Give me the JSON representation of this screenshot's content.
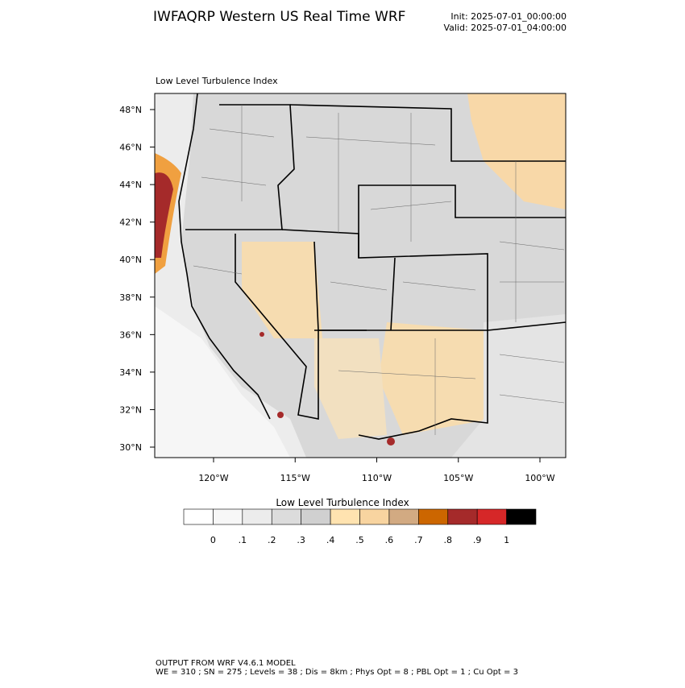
{
  "header": {
    "title": "IWFAQRP Western US Real Time WRF",
    "init": "Init: 2025-07-01_00:00:00",
    "valid": "Valid: 2025-07-01_04:00:00"
  },
  "map": {
    "subtitle": "Low Level Turbulence Index",
    "lat_labels": [
      "48°N",
      "46°N",
      "44°N",
      "42°N",
      "40°N",
      "38°N",
      "36°N",
      "34°N",
      "32°N",
      "30°N"
    ],
    "lon_labels": [
      "120°W",
      "115°W",
      "110°W",
      "105°W",
      "100°W"
    ]
  },
  "colorbar": {
    "title": "Low Level Turbulence Index",
    "colors": [
      "#ffffff",
      "#f7f7f7",
      "#ececec",
      "#dcdcdc",
      "#d0d0d0",
      "#ffe3b0",
      "#f8d4a0",
      "#d2aa82",
      "#cc6600",
      "#a52a2a",
      "#d62728",
      "#000000"
    ],
    "labels": [
      "0",
      ".1",
      ".2",
      ".3",
      ".4",
      ".5",
      ".6",
      ".7",
      ".8",
      ".9",
      "1"
    ]
  },
  "footer": {
    "line1": "OUTPUT FROM WRF V4.6.1 MODEL",
    "line2": "WE = 310 ; SN = 275 ; Levels = 38 ; Dis = 8km ; Phys Opt = 8 ; PBL Opt = 1 ; Cu Opt = 3"
  }
}
